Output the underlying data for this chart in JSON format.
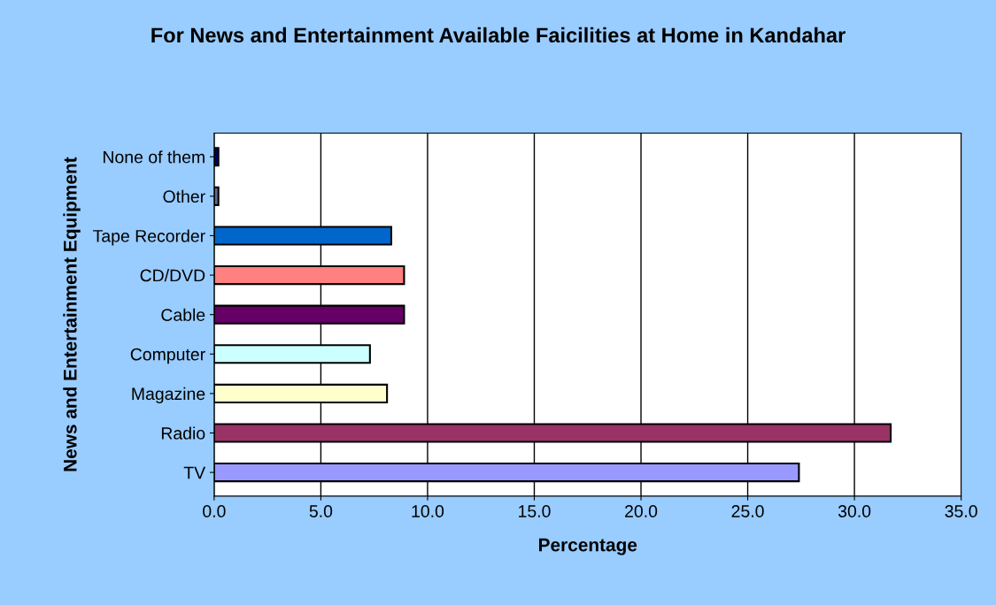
{
  "chart_data": {
    "type": "bar",
    "orientation": "horizontal",
    "title": "For News and Entertainment Available Faicilities at Home in Kandahar",
    "xlabel": "Percentage",
    "ylabel": "News and Entertainment Equipment",
    "categories": [
      "None of them",
      "Other",
      "Tape Recorder",
      "CD/DVD",
      "Cable",
      "Computer",
      "Magazine",
      "Radio",
      "TV"
    ],
    "values": [
      0.2,
      0.2,
      8.3,
      8.9,
      8.9,
      7.3,
      8.1,
      31.7,
      27.4
    ],
    "colors": [
      "#000066",
      "#666699",
      "#0066cc",
      "#ff8080",
      "#660066",
      "#ccffff",
      "#ffffcc",
      "#993366",
      "#9999ff"
    ],
    "xlim": [
      0,
      35
    ],
    "xticks": [
      {
        "value": 0,
        "label": "0.0"
      },
      {
        "value": 5,
        "label": "5.0"
      },
      {
        "value": 10,
        "label": "10.0"
      },
      {
        "value": 15,
        "label": "15.0"
      },
      {
        "value": 20,
        "label": "20.0"
      },
      {
        "value": 25,
        "label": "25.0"
      },
      {
        "value": 30,
        "label": "30.0"
      },
      {
        "value": 35,
        "label": "35.0"
      }
    ],
    "grid": "x",
    "legend": false
  }
}
